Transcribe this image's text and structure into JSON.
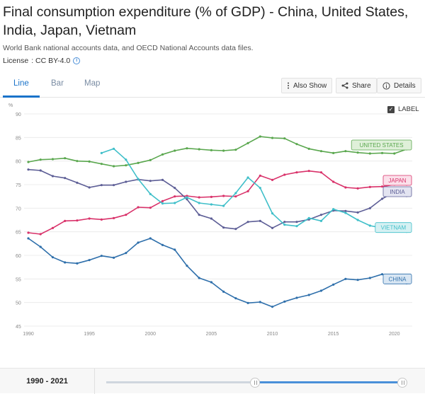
{
  "header": {
    "title": "Final consumption expenditure (% of GDP) - China, United States, India, Japan, Vietnam",
    "source": "World Bank national accounts data, and OECD National Accounts data files.",
    "license_label": "License",
    "license_value": ": CC BY-4.0"
  },
  "tabs": [
    {
      "label": "Line",
      "active": true
    },
    {
      "label": "Bar",
      "active": false
    },
    {
      "label": "Map",
      "active": false
    }
  ],
  "toolbar": {
    "also_show": "Also Show",
    "share": "Share",
    "details": "Details"
  },
  "label_toggle": {
    "text": "LABEL",
    "checked": true
  },
  "range": {
    "label": "1990 - 2021",
    "start_fraction": 0.5,
    "end_fraction": 1.0
  },
  "chart_data": {
    "type": "line",
    "ylabel": "%",
    "ylim": [
      45,
      90
    ],
    "xlim": [
      1990,
      2021
    ],
    "yticks": [
      45,
      50,
      55,
      60,
      65,
      70,
      75,
      80,
      85,
      90
    ],
    "xticks": [
      1990,
      1995,
      2000,
      2005,
      2010,
      2015,
      2020
    ],
    "grid": true,
    "series": [
      {
        "name": "UNITED STATES",
        "color": "#5aa74e",
        "label_bg": "#dff0d9",
        "x": [
          1990,
          1991,
          1992,
          1993,
          1994,
          1995,
          1996,
          1997,
          1998,
          1999,
          2000,
          2001,
          2002,
          2003,
          2004,
          2005,
          2006,
          2007,
          2008,
          2009,
          2010,
          2011,
          2012,
          2013,
          2014,
          2015,
          2016,
          2017,
          2018,
          2019,
          2020,
          2021
        ],
        "y": [
          79.8,
          80.3,
          80.4,
          80.6,
          80.0,
          79.9,
          79.4,
          78.9,
          79.1,
          79.6,
          80.2,
          81.4,
          82.2,
          82.7,
          82.5,
          82.3,
          82.2,
          82.4,
          83.8,
          85.2,
          84.9,
          84.8,
          83.6,
          82.6,
          82.1,
          81.7,
          82.1,
          81.8,
          81.6,
          81.7,
          81.6,
          82.5
        ]
      },
      {
        "name": "JAPAN",
        "color": "#d9326a",
        "label_bg": "#fbe0ea",
        "x": [
          1990,
          1991,
          1992,
          1993,
          1994,
          1995,
          1996,
          1997,
          1998,
          1999,
          2000,
          2001,
          2002,
          2003,
          2004,
          2005,
          2006,
          2007,
          2008,
          2009,
          2010,
          2011,
          2012,
          2013,
          2014,
          2015,
          2016,
          2017,
          2018,
          2019,
          2020,
          2021
        ],
        "y": [
          64.8,
          64.5,
          65.8,
          67.3,
          67.4,
          67.8,
          67.6,
          67.9,
          68.6,
          70.2,
          70.1,
          71.5,
          72.5,
          72.6,
          72.3,
          72.4,
          72.6,
          72.5,
          73.6,
          76.9,
          76.0,
          77.1,
          77.6,
          77.9,
          77.6,
          75.6,
          74.4,
          74.2,
          74.5,
          74.6,
          75.0,
          75.0
        ]
      },
      {
        "name": "INDIA",
        "color": "#5d5e96",
        "label_bg": "#e3e4f1",
        "x": [
          1990,
          1991,
          1992,
          1993,
          1994,
          1995,
          1996,
          1997,
          1998,
          1999,
          2000,
          2001,
          2002,
          2003,
          2004,
          2005,
          2006,
          2007,
          2008,
          2009,
          2010,
          2011,
          2012,
          2013,
          2014,
          2015,
          2016,
          2017,
          2018,
          2019,
          2020,
          2021
        ],
        "y": [
          78.2,
          78.0,
          76.8,
          76.4,
          75.4,
          74.4,
          74.9,
          74.9,
          75.6,
          76.1,
          75.8,
          76.0,
          74.3,
          71.9,
          68.6,
          67.8,
          65.9,
          65.6,
          67.1,
          67.3,
          65.8,
          67.1,
          67.1,
          67.6,
          68.6,
          69.5,
          69.4,
          69.1,
          70.0,
          72.0,
          73.4,
          72.6
        ]
      },
      {
        "name": "VIETNAM",
        "color": "#3fbfc9",
        "label_bg": "#d6f1f3",
        "x": [
          1996,
          1997,
          1998,
          1999,
          2000,
          2001,
          2002,
          2003,
          2004,
          2005,
          2006,
          2007,
          2008,
          2009,
          2010,
          2011,
          2012,
          2013,
          2014,
          2015,
          2016,
          2017,
          2018,
          2019,
          2020,
          2021
        ],
        "y": [
          81.7,
          82.6,
          80.3,
          76.2,
          73.0,
          71.0,
          71.1,
          72.3,
          71.1,
          70.8,
          70.5,
          73.2,
          76.5,
          74.3,
          68.9,
          66.5,
          66.2,
          67.9,
          67.3,
          69.8,
          69.0,
          67.5,
          66.3,
          65.8,
          65.4,
          65.0
        ]
      },
      {
        "name": "CHINA",
        "color": "#2e6fab",
        "label_bg": "#d8e6f3",
        "x": [
          1990,
          1991,
          1992,
          1993,
          1994,
          1995,
          1996,
          1997,
          1998,
          1999,
          2000,
          2001,
          2002,
          2003,
          2004,
          2005,
          2006,
          2007,
          2008,
          2009,
          2010,
          2011,
          2012,
          2013,
          2014,
          2015,
          2016,
          2017,
          2018,
          2019,
          2020,
          2021
        ],
        "y": [
          63.6,
          61.8,
          59.6,
          58.5,
          58.3,
          59.0,
          59.9,
          59.5,
          60.5,
          62.7,
          63.6,
          62.2,
          61.2,
          57.8,
          55.2,
          54.3,
          52.3,
          50.9,
          49.9,
          50.1,
          49.1,
          50.2,
          51.0,
          51.6,
          52.5,
          53.8,
          55.0,
          54.8,
          55.2,
          56.0,
          54.8,
          54.1
        ]
      }
    ]
  }
}
